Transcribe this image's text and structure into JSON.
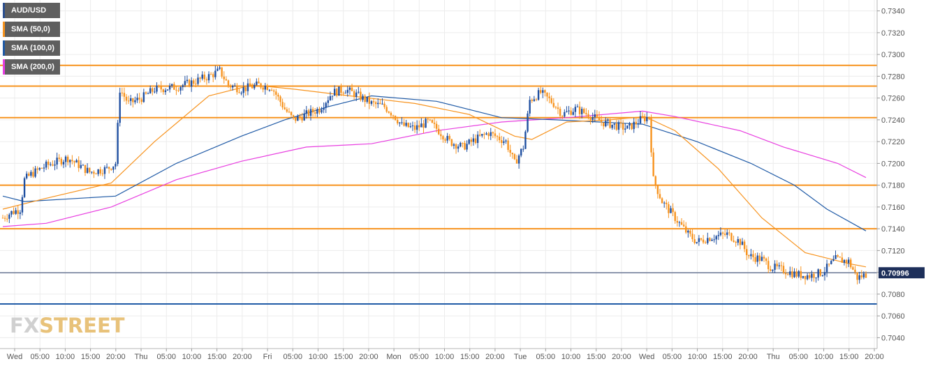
{
  "brand": {
    "watermark_prefix": "FX",
    "watermark_suffix": "STREET"
  },
  "legend": [
    {
      "label": "AUD/USD",
      "color": "#2b4f8f"
    },
    {
      "label": "SMA (50,0)",
      "color": "#f7931e"
    },
    {
      "label": "SMA (100,0)",
      "color": "#1f5aa6"
    },
    {
      "label": "SMA (200,0)",
      "color": "#e83ee0"
    }
  ],
  "chart_data": {
    "type": "candlestick",
    "symbol": "AUD/USD",
    "last_price": "0.70996",
    "ylim": [
      0.703,
      0.735
    ],
    "y_ticks": [
      "0.7340",
      "0.7320",
      "0.7300",
      "0.7280",
      "0.7260",
      "0.7240",
      "0.7220",
      "0.7200",
      "0.7180",
      "0.7160",
      "0.7140",
      "0.7120",
      "0.7100",
      "0.7080",
      "0.7060",
      "0.7040"
    ],
    "x_ticks": [
      "Wed",
      "05:00",
      "10:00",
      "15:00",
      "20:00",
      "Thu",
      "05:00",
      "10:00",
      "15:00",
      "20:00",
      "Fri",
      "05:00",
      "10:00",
      "15:00",
      "20:00",
      "Mon",
      "05:00",
      "10:00",
      "15:00",
      "20:00",
      "Tue",
      "05:00",
      "10:00",
      "15:00",
      "20:00",
      "Wed",
      "05:00",
      "10:00",
      "15:00",
      "20:00",
      "Thu",
      "05:00",
      "10:00",
      "15:00",
      "20:00"
    ],
    "horizontal_levels": [
      {
        "value": 0.729,
        "color": "#f7931e"
      },
      {
        "value": 0.7271,
        "color": "#f7931e"
      },
      {
        "value": 0.7242,
        "color": "#f7931e"
      },
      {
        "value": 0.718,
        "color": "#f7931e"
      },
      {
        "value": 0.714,
        "color": "#f7931e"
      },
      {
        "value": 0.7071,
        "color": "#1f5aa6"
      }
    ],
    "price_anchors": [
      [
        0,
        0.715
      ],
      [
        4,
        0.7155
      ],
      [
        8,
        0.7158
      ],
      [
        10,
        0.7185
      ],
      [
        13,
        0.719
      ],
      [
        20,
        0.7198
      ],
      [
        30,
        0.7205
      ],
      [
        40,
        0.7192
      ],
      [
        48,
        0.7195
      ],
      [
        52,
        0.72
      ],
      [
        54,
        0.7268
      ],
      [
        58,
        0.7255
      ],
      [
        64,
        0.726
      ],
      [
        70,
        0.7268
      ],
      [
        80,
        0.727
      ],
      [
        88,
        0.7275
      ],
      [
        95,
        0.728
      ],
      [
        100,
        0.7285
      ],
      [
        104,
        0.7272
      ],
      [
        110,
        0.7268
      ],
      [
        118,
        0.7272
      ],
      [
        124,
        0.727
      ],
      [
        130,
        0.725
      ],
      [
        134,
        0.724
      ],
      [
        140,
        0.7245
      ],
      [
        146,
        0.725
      ],
      [
        152,
        0.7265
      ],
      [
        158,
        0.7268
      ],
      [
        164,
        0.7262
      ],
      [
        170,
        0.7255
      ],
      [
        176,
        0.7252
      ],
      [
        180,
        0.7245
      ],
      [
        184,
        0.7235
      ],
      [
        190,
        0.7232
      ],
      [
        196,
        0.7238
      ],
      [
        200,
        0.7232
      ],
      [
        206,
        0.722
      ],
      [
        212,
        0.7215
      ],
      [
        218,
        0.7222
      ],
      [
        224,
        0.7228
      ],
      [
        232,
        0.722
      ],
      [
        236,
        0.72
      ],
      [
        240,
        0.7215
      ],
      [
        243,
        0.7258
      ],
      [
        248,
        0.7265
      ],
      [
        254,
        0.7255
      ],
      [
        258,
        0.7245
      ],
      [
        264,
        0.725
      ],
      [
        270,
        0.7245
      ],
      [
        276,
        0.7238
      ],
      [
        282,
        0.7235
      ],
      [
        288,
        0.7232
      ],
      [
        294,
        0.724
      ],
      [
        298,
        0.7243
      ],
      [
        300,
        0.7185
      ],
      [
        304,
        0.7165
      ],
      [
        310,
        0.715
      ],
      [
        316,
        0.7135
      ],
      [
        320,
        0.7128
      ],
      [
        326,
        0.7132
      ],
      [
        334,
        0.7135
      ],
      [
        340,
        0.7128
      ],
      [
        344,
        0.7115
      ],
      [
        350,
        0.7112
      ],
      [
        354,
        0.7105
      ],
      [
        360,
        0.7102
      ],
      [
        366,
        0.7098
      ],
      [
        372,
        0.7097
      ],
      [
        378,
        0.71
      ],
      [
        384,
        0.7112
      ],
      [
        390,
        0.711
      ],
      [
        394,
        0.7095
      ],
      [
        398,
        0.7098
      ]
    ],
    "sma_50": [
      [
        0,
        0.7158
      ],
      [
        20,
        0.7168
      ],
      [
        50,
        0.7182
      ],
      [
        70,
        0.722
      ],
      [
        95,
        0.7262
      ],
      [
        115,
        0.7272
      ],
      [
        135,
        0.7268
      ],
      [
        160,
        0.7262
      ],
      [
        190,
        0.7255
      ],
      [
        215,
        0.7245
      ],
      [
        236,
        0.7225
      ],
      [
        244,
        0.7222
      ],
      [
        260,
        0.7238
      ],
      [
        280,
        0.724
      ],
      [
        296,
        0.7243
      ],
      [
        310,
        0.723
      ],
      [
        330,
        0.7195
      ],
      [
        350,
        0.715
      ],
      [
        370,
        0.7118
      ],
      [
        390,
        0.7108
      ],
      [
        398,
        0.7105
      ]
    ],
    "sma_100": [
      [
        0,
        0.717
      ],
      [
        10,
        0.7165
      ],
      [
        52,
        0.717
      ],
      [
        80,
        0.72
      ],
      [
        110,
        0.7225
      ],
      [
        130,
        0.724
      ],
      [
        150,
        0.7252
      ],
      [
        170,
        0.7262
      ],
      [
        200,
        0.7257
      ],
      [
        230,
        0.7242
      ],
      [
        255,
        0.724
      ],
      [
        275,
        0.7238
      ],
      [
        295,
        0.7236
      ],
      [
        320,
        0.722
      ],
      [
        345,
        0.72
      ],
      [
        365,
        0.718
      ],
      [
        380,
        0.7158
      ],
      [
        398,
        0.7138
      ]
    ],
    "sma_200": [
      [
        0,
        0.7142
      ],
      [
        20,
        0.7145
      ],
      [
        50,
        0.716
      ],
      [
        80,
        0.7185
      ],
      [
        110,
        0.7202
      ],
      [
        140,
        0.7215
      ],
      [
        170,
        0.7218
      ],
      [
        200,
        0.723
      ],
      [
        230,
        0.7238
      ],
      [
        260,
        0.7242
      ],
      [
        295,
        0.7248
      ],
      [
        310,
        0.7243
      ],
      [
        340,
        0.723
      ],
      [
        360,
        0.7215
      ],
      [
        385,
        0.72
      ],
      [
        398,
        0.7187
      ]
    ],
    "series_bars": 399,
    "bullish_color": "#1f4fa0",
    "bearish_color": "#f7931e"
  }
}
